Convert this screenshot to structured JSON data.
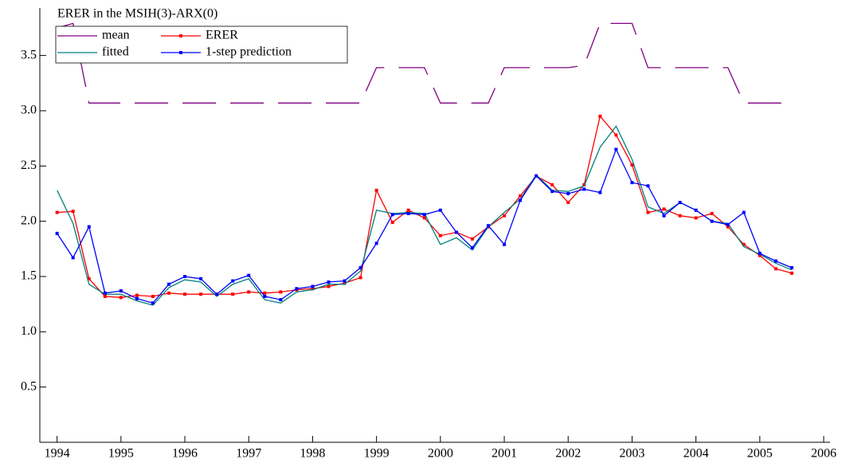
{
  "chart_data": {
    "type": "line",
    "title": "ERER in the MSIH(3)-ARX(0)",
    "x": [
      1994,
      1994.25,
      1994.5,
      1994.75,
      1995,
      1995.25,
      1995.5,
      1995.75,
      1996,
      1996.25,
      1996.5,
      1996.75,
      1997,
      1997.25,
      1997.5,
      1997.75,
      1998,
      1998.25,
      1998.5,
      1998.75,
      1999,
      1999.25,
      1999.5,
      1999.75,
      2000,
      2000.25,
      2000.5,
      2000.75,
      2001,
      2001.25,
      2001.5,
      2001.75,
      2002,
      2002.25,
      2002.5,
      2002.75,
      2003,
      2003.25,
      2003.5,
      2003.75,
      2004,
      2004.25,
      2004.5,
      2004.75,
      2005,
      2005.25,
      2005.5
    ],
    "series": [
      {
        "name": "mean",
        "color": "#800080",
        "line_style": "dashed",
        "values": [
          3.75,
          3.79,
          3.07,
          3.07,
          3.07,
          3.07,
          3.07,
          3.07,
          3.07,
          3.07,
          3.07,
          3.07,
          3.07,
          3.07,
          3.07,
          3.07,
          3.07,
          3.07,
          3.07,
          3.07,
          3.39,
          3.39,
          3.39,
          3.39,
          3.07,
          3.07,
          3.07,
          3.07,
          3.39,
          3.39,
          3.39,
          3.39,
          3.39,
          3.41,
          3.79,
          3.79,
          3.79,
          3.39,
          3.39,
          3.39,
          3.39,
          3.39,
          3.39,
          3.07,
          3.07,
          3.07,
          3.07
        ]
      },
      {
        "name": "ERER",
        "color": "#ff0000",
        "marker": "square",
        "values": [
          2.08,
          2.09,
          1.48,
          1.32,
          1.31,
          1.33,
          1.32,
          1.35,
          1.34,
          1.34,
          1.34,
          1.34,
          1.36,
          1.35,
          1.36,
          1.38,
          1.39,
          1.41,
          1.44,
          1.49,
          2.28,
          1.99,
          2.1,
          2.03,
          1.87,
          1.9,
          1.84,
          1.95,
          2.05,
          2.23,
          2.41,
          2.33,
          2.17,
          2.33,
          2.95,
          2.78,
          2.51,
          2.08,
          2.11,
          2.05,
          2.03,
          2.07,
          1.95,
          1.79,
          1.69,
          1.57,
          1.53
        ]
      },
      {
        "name": "fitted",
        "color": "#008080",
        "values": [
          2.28,
          1.98,
          1.43,
          1.34,
          1.34,
          1.28,
          1.24,
          1.4,
          1.47,
          1.45,
          1.32,
          1.43,
          1.48,
          1.29,
          1.26,
          1.36,
          1.38,
          1.43,
          1.43,
          1.55,
          2.1,
          2.07,
          2.08,
          2.07,
          1.79,
          1.85,
          1.74,
          1.95,
          2.08,
          2.2,
          2.42,
          2.28,
          2.27,
          2.32,
          2.67,
          2.86,
          2.56,
          2.13,
          2.07,
          2.17,
          2.1,
          2.0,
          1.98,
          1.77,
          1.7,
          1.62,
          1.56
        ]
      },
      {
        "name": "1-step prediction",
        "color": "#0000ff",
        "marker": "square",
        "values": [
          1.89,
          1.67,
          1.95,
          1.35,
          1.37,
          1.3,
          1.26,
          1.43,
          1.5,
          1.48,
          1.34,
          1.46,
          1.51,
          1.32,
          1.29,
          1.39,
          1.41,
          1.45,
          1.46,
          1.58,
          1.8,
          2.06,
          2.07,
          2.06,
          2.1,
          1.9,
          1.76,
          1.96,
          1.79,
          2.19,
          2.41,
          2.27,
          2.25,
          2.29,
          2.26,
          2.65,
          2.35,
          2.32,
          2.05,
          2.17,
          2.1,
          2.0,
          1.97,
          2.08,
          1.71,
          1.64,
          1.58
        ]
      }
    ],
    "xlim": [
      1993.73,
      2006.1
    ],
    "xticks": [
      1994,
      1995,
      1996,
      1997,
      1998,
      1999,
      2000,
      2001,
      2002,
      2003,
      2004,
      2005,
      2006
    ],
    "ylim": [
      0,
      3.93
    ],
    "yticks": [
      0.5,
      {
        "value": 1,
        "label": "1.0"
      },
      1.5,
      {
        "value": 2,
        "label": "2.0"
      },
      2.5,
      {
        "value": 3,
        "label": "3.0"
      },
      3.5
    ],
    "legend": "top-left"
  }
}
